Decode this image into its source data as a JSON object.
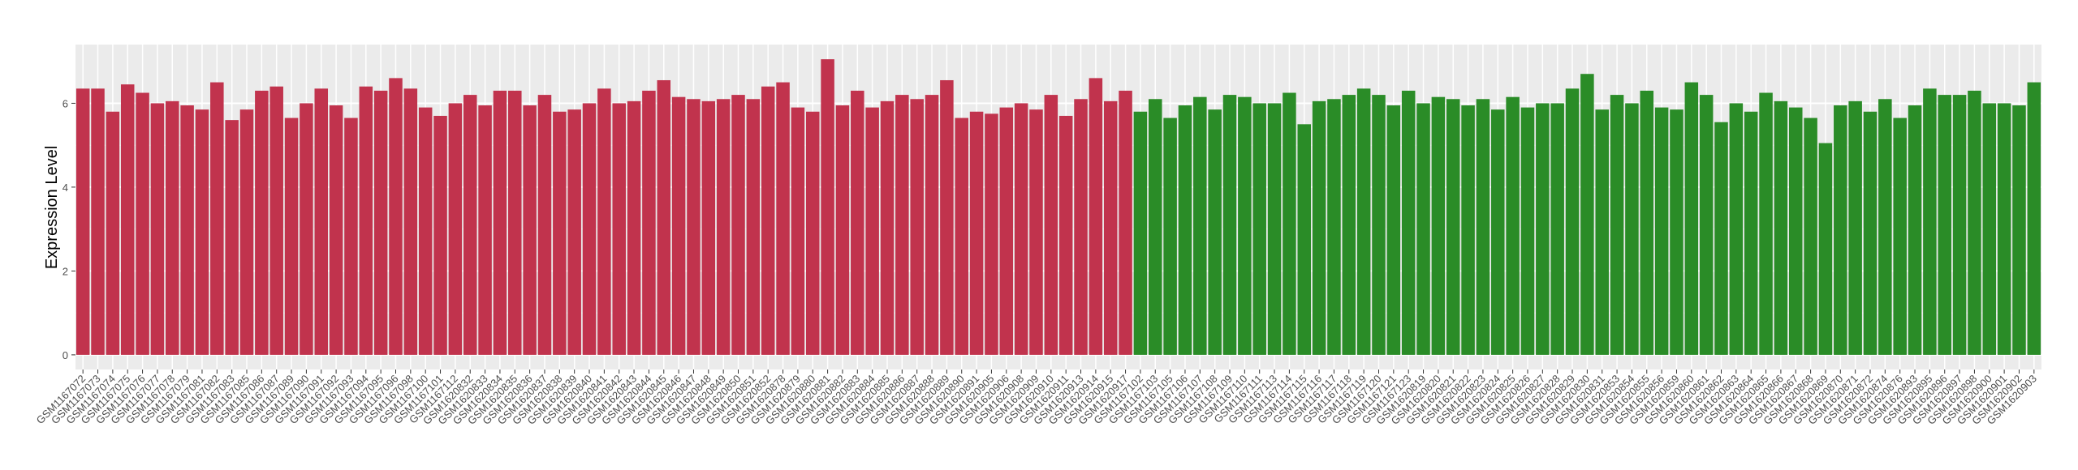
{
  "chart_data": {
    "type": "bar",
    "y_label": "Expression Level",
    "ylim": [
      -0.35,
      7.4
    ],
    "yticks": [
      0,
      2,
      4,
      6
    ],
    "grid": true,
    "series": [
      {
        "color": "#c1334d",
        "categories": [
          "GSM1167072",
          "GSM1167073",
          "GSM1167074",
          "GSM1167075",
          "GSM1167076",
          "GSM1167077",
          "GSM1167078",
          "GSM1167079",
          "GSM1167081",
          "GSM1167082",
          "GSM1167083",
          "GSM1167085",
          "GSM1167086",
          "GSM1167087",
          "GSM1167089",
          "GSM1167090",
          "GSM1167091",
          "GSM1167092",
          "GSM1167093",
          "GSM1167094",
          "GSM1167095",
          "GSM1167096",
          "GSM1167098",
          "GSM1167100",
          "GSM1167101",
          "GSM1167112",
          "GSM1620832",
          "GSM1620833",
          "GSM1620834",
          "GSM1620835",
          "GSM1620836",
          "GSM1620837",
          "GSM1620838",
          "GSM1620839",
          "GSM1620840",
          "GSM1620841",
          "GSM1620842",
          "GSM1620843",
          "GSM1620844",
          "GSM1620845",
          "GSM1620846",
          "GSM1620847",
          "GSM1620848",
          "GSM1620849",
          "GSM1620850",
          "GSM1620851",
          "GSM1620852",
          "GSM1620878",
          "GSM1620879",
          "GSM1620880",
          "GSM1620881",
          "GSM1620882",
          "GSM1620883",
          "GSM1620884",
          "GSM1620885",
          "GSM1620886",
          "GSM1620887",
          "GSM1620888",
          "GSM1620889",
          "GSM1620890",
          "GSM1620891",
          "GSM1620905",
          "GSM1620906",
          "GSM1620908",
          "GSM1620909",
          "GSM1620910",
          "GSM1620911",
          "GSM1620913",
          "GSM1620914",
          "GSM1620915",
          "GSM1620917"
        ],
        "values": [
          6.35,
          6.35,
          5.8,
          6.45,
          6.25,
          6.0,
          6.05,
          5.95,
          5.85,
          6.5,
          5.6,
          5.85,
          6.3,
          6.4,
          5.65,
          6.0,
          6.35,
          5.95,
          5.65,
          6.4,
          6.3,
          6.6,
          6.35,
          5.9,
          5.7,
          6.0,
          6.2,
          5.95,
          6.3,
          6.3,
          5.95,
          6.2,
          5.8,
          5.85,
          6.0,
          6.35,
          6.0,
          6.05,
          6.3,
          6.55,
          6.15,
          6.1,
          6.05,
          6.1,
          6.2,
          6.1,
          6.4,
          6.5,
          5.9,
          5.8,
          7.05,
          5.95,
          6.3,
          5.9,
          6.05,
          6.2,
          6.1,
          6.2,
          6.55,
          5.65,
          5.8,
          5.75,
          5.9,
          6.0,
          5.85,
          6.2,
          5.7,
          6.1,
          6.6,
          6.05,
          6.3
        ]
      },
      {
        "color": "#2a8c27",
        "categories": [
          "GSM1167102",
          "GSM1167103",
          "GSM1167105",
          "GSM1167106",
          "GSM1167107",
          "GSM1167108",
          "GSM1167109",
          "GSM1167110",
          "GSM1167111",
          "GSM1167113",
          "GSM1167114",
          "GSM1167115",
          "GSM1167116",
          "GSM1167117",
          "GSM1167118",
          "GSM1167119",
          "GSM1167120",
          "GSM1167121",
          "GSM1167123",
          "GSM1620819",
          "GSM1620820",
          "GSM1620821",
          "GSM1620822",
          "GSM1620823",
          "GSM1620824",
          "GSM1620825",
          "GSM1620826",
          "GSM1620827",
          "GSM1620828",
          "GSM1620829",
          "GSM1620830",
          "GSM1620831",
          "GSM1620853",
          "GSM1620854",
          "GSM1620855",
          "GSM1620856",
          "GSM1620859",
          "GSM1620860",
          "GSM1620861",
          "GSM1620862",
          "GSM1620863",
          "GSM1620864",
          "GSM1620865",
          "GSM1620866",
          "GSM1620867",
          "GSM1620868",
          "GSM1620869",
          "GSM1620870",
          "GSM1620871",
          "GSM1620872",
          "GSM1620874",
          "GSM1620876",
          "GSM1620893",
          "GSM1620895",
          "GSM1620896",
          "GSM1620897",
          "GSM1620898",
          "GSM1620900",
          "GSM1620901",
          "GSM1620902",
          "GSM1620903"
        ],
        "values": [
          5.8,
          6.1,
          5.65,
          5.95,
          6.15,
          5.85,
          6.2,
          6.15,
          6.0,
          6.0,
          6.25,
          5.5,
          6.05,
          6.1,
          6.2,
          6.35,
          6.2,
          5.95,
          6.3,
          6.0,
          6.15,
          6.1,
          5.95,
          6.1,
          5.85,
          6.15,
          5.9,
          6.0,
          6.0,
          6.35,
          6.7,
          5.85,
          6.2,
          6.0,
          6.3,
          5.9,
          5.85,
          6.5,
          6.2,
          5.55,
          6.0,
          5.8,
          6.25,
          6.05,
          5.9,
          5.65,
          5.05,
          5.95,
          6.05,
          5.8,
          6.1,
          5.65,
          5.95,
          6.35,
          6.2,
          6.2,
          6.3,
          6.0,
          6.0,
          5.95,
          6.5
        ]
      }
    ]
  }
}
